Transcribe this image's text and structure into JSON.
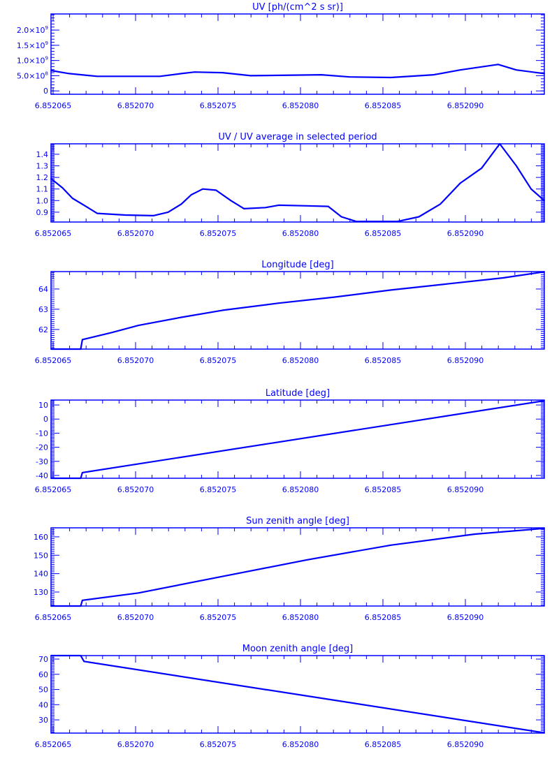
{
  "colors": {
    "line": "#0000ff",
    "background": "#ffffff"
  },
  "chart_data": [
    {
      "type": "line",
      "title": "UV [ph/(cm^2 s sr)]",
      "xlim": [
        6.8520649,
        6.8520948
      ],
      "ylim": [
        -110000000,
        2530000000
      ],
      "xticks": [
        "6.852065",
        "6.852070",
        "6.852075",
        "6.852080",
        "6.852085",
        "6.852090"
      ],
      "yticks": [
        {
          "value": 0,
          "mant": "0",
          "exp": ""
        },
        {
          "value": 500000000,
          "mant": "5.0×10",
          "exp": "8"
        },
        {
          "value": 1000000000,
          "mant": "1.0×10",
          "exp": "9"
        },
        {
          "value": 1500000000,
          "mant": "1.5×10",
          "exp": "9"
        },
        {
          "value": 2000000000,
          "mant": "2.0×10",
          "exp": "9"
        }
      ],
      "yminor": 100000000,
      "x": [
        6.8520649,
        6.852066,
        6.8520677,
        6.8520715,
        6.8520728,
        6.8520736,
        6.8520753,
        6.852077,
        6.8520813,
        6.852083,
        6.8520855,
        6.8520881,
        6.8520897,
        6.852092,
        6.8520931,
        6.8520948
      ],
      "y": [
        670000000,
        570000000,
        480000000,
        480000000,
        570000000,
        620000000,
        600000000,
        500000000,
        530000000,
        460000000,
        440000000,
        530000000,
        690000000,
        870000000,
        690000000,
        570000000
      ]
    },
    {
      "type": "line",
      "title": "UV / UV average in selected period",
      "xlim": [
        6.8520649,
        6.8520948
      ],
      "ylim": [
        0.815,
        1.49
      ],
      "xticks": [
        "6.852065",
        "6.852070",
        "6.852075",
        "6.852080",
        "6.852085",
        "6.852090"
      ],
      "yticks": [
        {
          "value": 0.9,
          "mant": "0.9",
          "exp": ""
        },
        {
          "value": 1.0,
          "mant": "1.0",
          "exp": ""
        },
        {
          "value": 1.1,
          "mant": "1.1",
          "exp": ""
        },
        {
          "value": 1.2,
          "mant": "1.2",
          "exp": ""
        },
        {
          "value": 1.3,
          "mant": "1.3",
          "exp": ""
        },
        {
          "value": 1.4,
          "mant": "1.4",
          "exp": ""
        }
      ],
      "yminor": 0.01,
      "x": [
        6.8520649,
        6.8520656,
        6.8520662,
        6.8520669,
        6.8520677,
        6.8520694,
        6.8520711,
        6.852072,
        6.8520728,
        6.8520734,
        6.8520741,
        6.8520749,
        6.8520758,
        6.8520766,
        6.8520779,
        6.8520787,
        6.8520804,
        6.8520817,
        6.8520825,
        6.8520834,
        6.8520859,
        6.8520872,
        6.8520885,
        6.8520897,
        6.852091,
        6.8520921,
        6.8520931,
        6.852094,
        6.8520948
      ],
      "y": [
        1.19,
        1.11,
        1.02,
        0.96,
        0.89,
        0.875,
        0.87,
        0.9,
        0.97,
        1.05,
        1.1,
        1.09,
        1.0,
        0.93,
        0.94,
        0.96,
        0.955,
        0.95,
        0.86,
        0.82,
        0.82,
        0.86,
        0.97,
        1.15,
        1.28,
        1.49,
        1.3,
        1.1,
        1.0
      ]
    },
    {
      "type": "line",
      "title": "Longitude [deg]",
      "xlim": [
        6.8520649,
        6.8520948
      ],
      "ylim": [
        61.03,
        64.86
      ],
      "xticks": [
        "6.852065",
        "6.852070",
        "6.852075",
        "6.852080",
        "6.852085",
        "6.852090"
      ],
      "yticks": [
        {
          "value": 62,
          "mant": "62",
          "exp": ""
        },
        {
          "value": 63,
          "mant": "63",
          "exp": ""
        },
        {
          "value": 64,
          "mant": "64",
          "exp": ""
        }
      ],
      "yminor": 0.1,
      "x": [
        6.8520649,
        6.8520667,
        6.8520668,
        6.8520686,
        6.8520702,
        6.8520728,
        6.8520753,
        6.8520787,
        6.8520821,
        6.8520855,
        6.8520889,
        6.8520923,
        6.8520948
      ],
      "y": [
        61.03,
        61.03,
        61.5,
        61.85,
        62.2,
        62.6,
        62.95,
        63.3,
        63.6,
        63.95,
        64.25,
        64.55,
        64.85
      ]
    },
    {
      "type": "line",
      "title": "Latitude [deg]",
      "xlim": [
        6.8520649,
        6.8520948
      ],
      "ylim": [
        -42,
        13.5
      ],
      "xticks": [
        "6.852065",
        "6.852070",
        "6.852075",
        "6.852080",
        "6.852085",
        "6.852090"
      ],
      "yticks": [
        {
          "value": -40,
          "mant": "-40",
          "exp": ""
        },
        {
          "value": -30,
          "mant": "-30",
          "exp": ""
        },
        {
          "value": -20,
          "mant": "-20",
          "exp": ""
        },
        {
          "value": -10,
          "mant": "-10",
          "exp": ""
        },
        {
          "value": 0,
          "mant": "0",
          "exp": ""
        },
        {
          "value": 10,
          "mant": "10",
          "exp": ""
        }
      ],
      "yminor": 1,
      "x": [
        6.8520649,
        6.8520667,
        6.8520668,
        6.8520948
      ],
      "y": [
        -42,
        -42,
        -38,
        13
      ]
    },
    {
      "type": "line",
      "title": "Sun zenith angle [deg]",
      "xlim": [
        6.8520649,
        6.8520948
      ],
      "ylim": [
        122.4,
        164.9
      ],
      "xticks": [
        "6.852065",
        "6.852070",
        "6.852075",
        "6.852080",
        "6.852085",
        "6.852090"
      ],
      "yticks": [
        {
          "value": 130,
          "mant": "130",
          "exp": ""
        },
        {
          "value": 140,
          "mant": "140",
          "exp": ""
        },
        {
          "value": 150,
          "mant": "150",
          "exp": ""
        },
        {
          "value": 160,
          "mant": "160",
          "exp": ""
        }
      ],
      "yminor": 1,
      "x": [
        6.8520649,
        6.8520667,
        6.8520668,
        6.8520702,
        6.8520753,
        6.8520804,
        6.8520855,
        6.8520906,
        6.8520948
      ],
      "y": [
        122.4,
        122.4,
        125.5,
        129.5,
        138.5,
        147.5,
        155.5,
        161.5,
        164.6
      ]
    },
    {
      "type": "line",
      "title": "Moon zenith angle [deg]",
      "xlim": [
        6.8520649,
        6.8520948
      ],
      "ylim": [
        21.3,
        72.3
      ],
      "xticks": [
        "6.852065",
        "6.852070",
        "6.852075",
        "6.852080",
        "6.852085",
        "6.852090"
      ],
      "yticks": [
        {
          "value": 30,
          "mant": "30",
          "exp": ""
        },
        {
          "value": 40,
          "mant": "40",
          "exp": ""
        },
        {
          "value": 50,
          "mant": "50",
          "exp": ""
        },
        {
          "value": 60,
          "mant": "60",
          "exp": ""
        },
        {
          "value": 70,
          "mant": "70",
          "exp": ""
        }
      ],
      "yminor": 1,
      "x": [
        6.8520649,
        6.8520667,
        6.8520669,
        6.8520948
      ],
      "y": [
        72.3,
        72.3,
        68.5,
        21.5
      ]
    }
  ]
}
